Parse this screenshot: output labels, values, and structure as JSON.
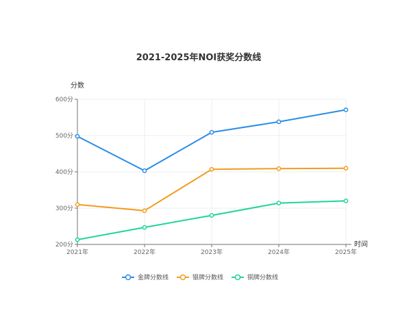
{
  "chart_data": {
    "type": "line",
    "title": "2021-2025年NOI获奖分数线",
    "ylabel": "分数",
    "xlabel": "时间",
    "categories": [
      "2021年",
      "2022年",
      "2023年",
      "2024年",
      "2025年"
    ],
    "ylim": [
      200,
      600
    ],
    "yticks": [
      200,
      300,
      400,
      500,
      600
    ],
    "ytick_labels": [
      "200分",
      "300分",
      "400分",
      "500分",
      "600分"
    ],
    "grid": true,
    "legend_position": "bottom",
    "series": [
      {
        "name": "金牌分数线",
        "color": "#2a8ce6",
        "values": [
          498,
          403,
          509,
          538,
          571
        ]
      },
      {
        "name": "银牌分数线",
        "color": "#f29b1d",
        "values": [
          310,
          293,
          407,
          409,
          410
        ]
      },
      {
        "name": "铜牌分数线",
        "color": "#1ed49a",
        "values": [
          213,
          247,
          280,
          314,
          320
        ]
      }
    ]
  }
}
